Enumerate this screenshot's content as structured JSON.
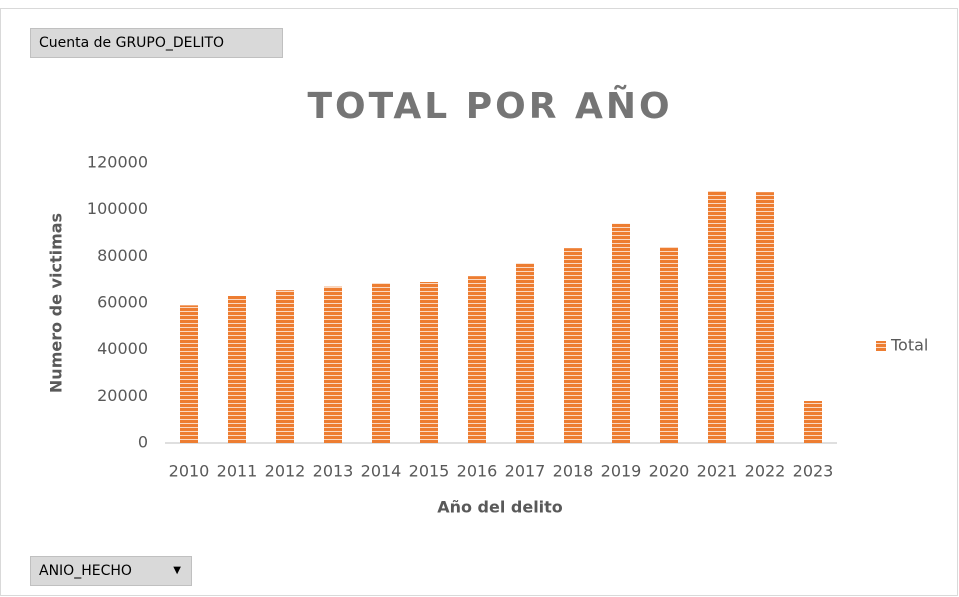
{
  "pivot_fields": {
    "value_field": "Cuenta de GRUPO_DELITO",
    "axis_field": "ANIO_HECHO"
  },
  "chart_data": {
    "type": "bar",
    "title": "TOTAL POR AÑO",
    "x_label": "Año del delito",
    "y_label": "Numero de victimas",
    "categories": [
      "2010",
      "2011",
      "2012",
      "2013",
      "2014",
      "2015",
      "2016",
      "2017",
      "2018",
      "2019",
      "2020",
      "2021",
      "2022",
      "2023"
    ],
    "series": [
      {
        "name": "Total",
        "color": "#ed7d31",
        "values": [
          59000,
          63000,
          65500,
          67000,
          68500,
          69000,
          71500,
          77000,
          83500,
          94000,
          84000,
          108000,
          107500,
          18000
        ]
      }
    ],
    "ylim": [
      0,
      120000
    ],
    "yticks": [
      0,
      20000,
      40000,
      60000,
      80000,
      100000,
      120000
    ],
    "grid": false,
    "legend": "right"
  }
}
